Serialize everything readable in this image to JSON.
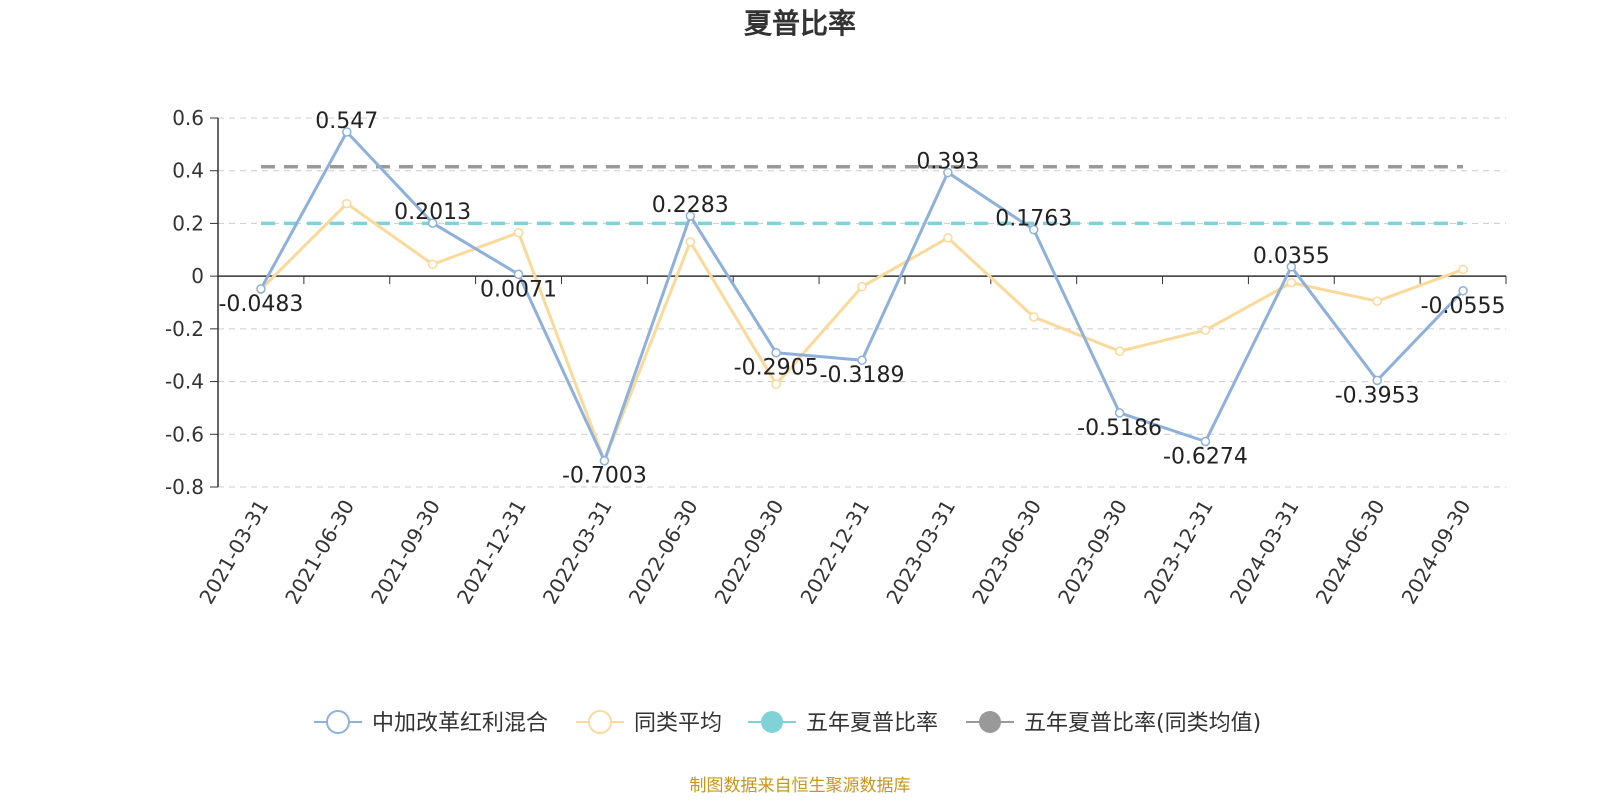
{
  "chart_data": {
    "type": "line",
    "title": "夏普比率",
    "source": "制图数据来自恒生聚源数据库",
    "x": [
      "2021-03-31",
      "2021-06-30",
      "2021-09-30",
      "2021-12-31",
      "2022-03-31",
      "2022-06-30",
      "2022-09-30",
      "2022-12-31",
      "2023-03-31",
      "2023-06-30",
      "2023-09-30",
      "2023-12-31",
      "2024-03-31",
      "2024-06-30",
      "2024-09-30"
    ],
    "ylim": [
      -0.8,
      0.6
    ],
    "yticks": [
      "0.6",
      "0.4",
      "0.2",
      "0",
      "-0.2",
      "-0.4",
      "-0.6",
      "-0.8"
    ],
    "grid": true,
    "legend_position": "bottom",
    "series": [
      {
        "name": "中加改革红利混合",
        "color": "#8eb0dc",
        "values": [
          -0.0483,
          0.547,
          0.2013,
          0.0071,
          -0.7003,
          0.2283,
          -0.2905,
          -0.3189,
          0.393,
          0.1763,
          -0.5186,
          -0.6274,
          0.0355,
          -0.3953,
          -0.0555
        ],
        "labels": [
          "-0.0483",
          "0.547",
          "0.2013",
          "0.0071",
          "-0.7003",
          "0.2283",
          "-0.2905",
          "-0.3189",
          "0.393",
          "0.1763",
          "-0.5186",
          "-0.6274",
          "0.0355",
          "-0.3953",
          "-0.0555"
        ]
      },
      {
        "name": "同类平均",
        "color": "#fbd99a",
        "values": [
          -0.05,
          0.275,
          0.045,
          0.165,
          -0.7,
          0.13,
          -0.41,
          -0.04,
          0.145,
          -0.155,
          -0.285,
          -0.205,
          -0.025,
          -0.095,
          0.025
        ]
      },
      {
        "name": "五年夏普比率",
        "color": "#7fd3d6",
        "constant": 0.2,
        "dashed": true
      },
      {
        "name": "五年夏普比率(同类均值)",
        "color": "#999999",
        "constant": 0.415,
        "dashed": true
      }
    ]
  }
}
